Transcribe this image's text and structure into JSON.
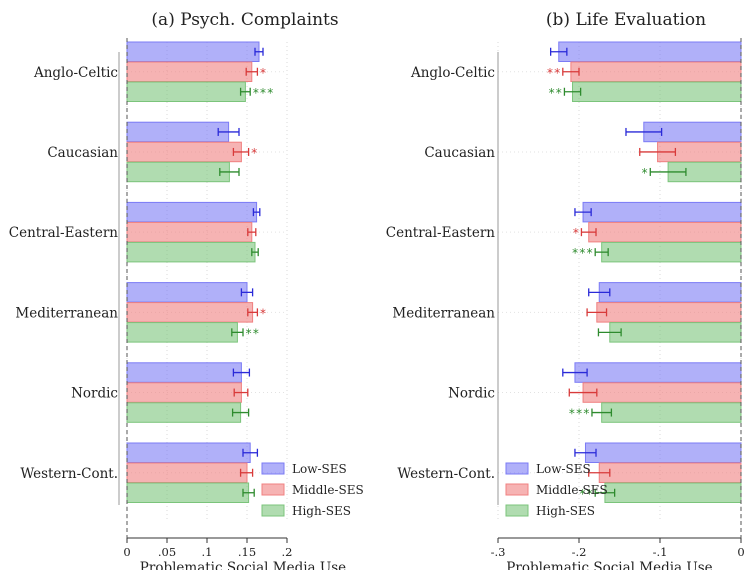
{
  "chart_data": [
    {
      "type": "bar",
      "orientation": "horizontal",
      "title": "(a) Psych. Complaints",
      "xlabel": "Problematic Social Media Use",
      "xlim": [
        0,
        0.2
      ],
      "xticks": [
        "0",
        ".05",
        ".1",
        ".15",
        ".2"
      ],
      "xtick_values": [
        0,
        0.05,
        0.1,
        0.15,
        0.2
      ],
      "grid": true,
      "categories": [
        "Anglo-Celtic",
        "Caucasian",
        "Central-Eastern",
        "Mediterranean",
        "Nordic",
        "Western-Cont."
      ],
      "series": [
        {
          "name": "Low-SES",
          "color": "#7b7bf5",
          "values": [
            0.165,
            0.127,
            0.162,
            0.15,
            0.143,
            0.154
          ],
          "ci_low": [
            0.16,
            0.114,
            0.158,
            0.143,
            0.133,
            0.145
          ],
          "ci_high": [
            0.17,
            0.14,
            0.166,
            0.157,
            0.153,
            0.163
          ],
          "sig": [
            "",
            "",
            "",
            "",
            "",
            ""
          ]
        },
        {
          "name": "Middle-SES",
          "color": "#f08080",
          "values": [
            0.156,
            0.143,
            0.156,
            0.157,
            0.143,
            0.15
          ],
          "ci_low": [
            0.149,
            0.133,
            0.151,
            0.151,
            0.134,
            0.142
          ],
          "ci_high": [
            0.163,
            0.152,
            0.161,
            0.163,
            0.151,
            0.157
          ],
          "sig": [
            "*",
            "*",
            "",
            "*",
            "",
            ""
          ]
        },
        {
          "name": "High-SES",
          "color": "#7bc47b",
          "values": [
            0.148,
            0.128,
            0.16,
            0.138,
            0.142,
            0.152
          ],
          "ci_low": [
            0.142,
            0.116,
            0.156,
            0.131,
            0.132,
            0.145
          ],
          "ci_high": [
            0.154,
            0.14,
            0.164,
            0.145,
            0.152,
            0.159
          ],
          "sig": [
            "***",
            "",
            "",
            "**",
            "",
            ""
          ]
        }
      ]
    },
    {
      "type": "bar",
      "orientation": "horizontal",
      "title": "(b) Life Evaluation",
      "xlabel": "Problematic Social Media Use",
      "xlim": [
        -0.3,
        0
      ],
      "xticks": [
        "-.3",
        "-.2",
        "-.1",
        "0"
      ],
      "xtick_values": [
        -0.3,
        -0.2,
        -0.1,
        0
      ],
      "grid": true,
      "categories": [
        "Anglo-Celtic",
        "Caucasian",
        "Central-Eastern",
        "Mediterranean",
        "Nordic",
        "Western-Cont."
      ],
      "series": [
        {
          "name": "Low-SES",
          "color": "#7b7bf5",
          "values": [
            -0.225,
            -0.12,
            -0.195,
            -0.175,
            -0.205,
            -0.192
          ],
          "ci_low": [
            -0.235,
            -0.142,
            -0.205,
            -0.188,
            -0.22,
            -0.205
          ],
          "ci_high": [
            -0.215,
            -0.098,
            -0.185,
            -0.162,
            -0.19,
            -0.179
          ],
          "sig": [
            "",
            "",
            "",
            "",
            "",
            ""
          ]
        },
        {
          "name": "Middle-SES",
          "color": "#f08080",
          "values": [
            -0.21,
            -0.103,
            -0.188,
            -0.178,
            -0.195,
            -0.175
          ],
          "ci_low": [
            -0.22,
            -0.125,
            -0.197,
            -0.19,
            -0.212,
            -0.188
          ],
          "ci_high": [
            -0.2,
            -0.081,
            -0.179,
            -0.166,
            -0.178,
            -0.162
          ],
          "sig": [
            "**",
            "",
            "*",
            "",
            "",
            ""
          ]
        },
        {
          "name": "High-SES",
          "color": "#7bc47b",
          "values": [
            -0.208,
            -0.09,
            -0.172,
            -0.162,
            -0.172,
            -0.168
          ],
          "ci_low": [
            -0.218,
            -0.112,
            -0.18,
            -0.176,
            -0.184,
            -0.18
          ],
          "ci_high": [
            -0.198,
            -0.068,
            -0.164,
            -0.148,
            -0.16,
            -0.156
          ],
          "sig": [
            "**",
            "*",
            "***",
            "",
            "***",
            "**"
          ]
        }
      ]
    }
  ],
  "legend": {
    "placement": "bottom-right",
    "entries": [
      "Low-SES",
      "Middle-SES",
      "High-SES"
    ]
  }
}
